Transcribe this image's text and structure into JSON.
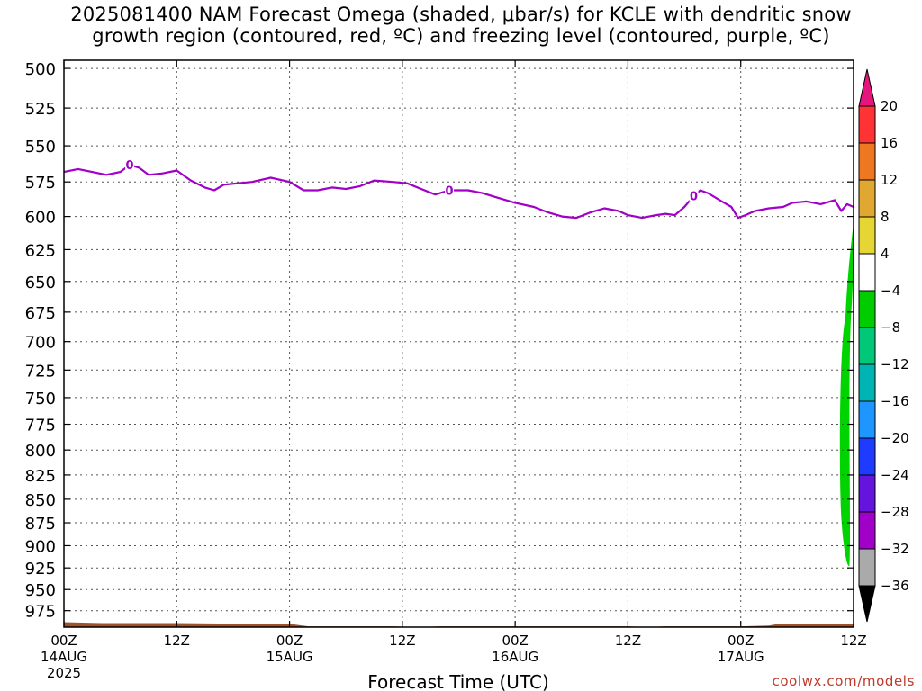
{
  "title": {
    "line1": "2025081400 NAM Forecast Omega (shaded, μbar/s) for KCLE with dendritic snow",
    "line2": "growth region (contoured, red, ºC) and freezing level (contoured, purple, ºC)"
  },
  "credit": "coolwx.com/models",
  "chart_data": {
    "type": "heatmap",
    "xlabel": "Forecast Time (UTC)",
    "ylabel": "",
    "x_range_hours": [
      0,
      84
    ],
    "x_ticks": [
      {
        "hour": 0,
        "label": "00Z",
        "date": "14AUG",
        "year": "2025"
      },
      {
        "hour": 12,
        "label": "12Z"
      },
      {
        "hour": 24,
        "label": "00Z",
        "date": "15AUG"
      },
      {
        "hour": 36,
        "label": "12Z"
      },
      {
        "hour": 48,
        "label": "00Z",
        "date": "16AUG"
      },
      {
        "hour": 60,
        "label": "12Z"
      },
      {
        "hour": 72,
        "label": "00Z",
        "date": "17AUG"
      },
      {
        "hour": 84,
        "label": "12Z"
      }
    ],
    "y_axis": {
      "label": "",
      "units": "mb",
      "log_scale": true,
      "range": [
        995,
        495
      ],
      "ticks": [
        500,
        525,
        550,
        575,
        600,
        625,
        650,
        675,
        700,
        725,
        750,
        775,
        800,
        825,
        850,
        875,
        900,
        925,
        950,
        975
      ]
    },
    "grid": true,
    "freezing_level": {
      "color": "#a000c8",
      "contour_value": "0",
      "label_hours": [
        7,
        41,
        67
      ],
      "points": [
        [
          0,
          568
        ],
        [
          1.5,
          566
        ],
        [
          3,
          568
        ],
        [
          4.5,
          570
        ],
        [
          6,
          568
        ],
        [
          7,
          563
        ],
        [
          8,
          565
        ],
        [
          9,
          570
        ],
        [
          10.5,
          569
        ],
        [
          12,
          567
        ],
        [
          13.5,
          574
        ],
        [
          15,
          579
        ],
        [
          16,
          581
        ],
        [
          17,
          577
        ],
        [
          18.5,
          576
        ],
        [
          20,
          575
        ],
        [
          22,
          572
        ],
        [
          24,
          575
        ],
        [
          25.5,
          581
        ],
        [
          27,
          581
        ],
        [
          28.5,
          579
        ],
        [
          30,
          580
        ],
        [
          31.5,
          578
        ],
        [
          33,
          574
        ],
        [
          35,
          575
        ],
        [
          36.5,
          576
        ],
        [
          38,
          580
        ],
        [
          39.5,
          584
        ],
        [
          41,
          581
        ],
        [
          43,
          581
        ],
        [
          44.5,
          583
        ],
        [
          46,
          586
        ],
        [
          48,
          590
        ],
        [
          50,
          593
        ],
        [
          51.5,
          597
        ],
        [
          53,
          600
        ],
        [
          54.5,
          601
        ],
        [
          56,
          597
        ],
        [
          57.5,
          594
        ],
        [
          59,
          596
        ],
        [
          60,
          599
        ],
        [
          61.5,
          601
        ],
        [
          63,
          599
        ],
        [
          64,
          598
        ],
        [
          65,
          599
        ],
        [
          66,
          593
        ],
        [
          67,
          585
        ],
        [
          67.7,
          581
        ],
        [
          68.5,
          583
        ],
        [
          70,
          589
        ],
        [
          71,
          593
        ],
        [
          71.7,
          601
        ],
        [
          72.5,
          599
        ],
        [
          73.5,
          596
        ],
        [
          75,
          594
        ],
        [
          76.5,
          593
        ],
        [
          77.5,
          590
        ],
        [
          79,
          589
        ],
        [
          80.5,
          591
        ],
        [
          81.5,
          589
        ],
        [
          82,
          588
        ],
        [
          82.7,
          596
        ],
        [
          83.3,
          591
        ],
        [
          84,
          593
        ]
      ]
    },
    "omega_field": {
      "color": "#00d400",
      "band_range_mb": [
        -8,
        -4
      ],
      "hours": [
        82.7,
        84
      ],
      "pressure_range_mb": [
        605,
        925
      ]
    },
    "terrain": {
      "color": "#a0522d",
      "surface_pressure_mb": [
        [
          0,
          989
        ],
        [
          4,
          990
        ],
        [
          12,
          990
        ],
        [
          20,
          991
        ],
        [
          24,
          991
        ],
        [
          26,
          994
        ],
        [
          35,
          994
        ],
        [
          38,
          995
        ],
        [
          40,
          994
        ],
        [
          48,
          994
        ],
        [
          58,
          994
        ],
        [
          60,
          994
        ],
        [
          62,
          995
        ],
        [
          64,
          994
        ],
        [
          72,
          994
        ],
        [
          75,
          993
        ],
        [
          76,
          991
        ],
        [
          84,
          991
        ]
      ]
    },
    "colorbar": {
      "units": "μbar/s",
      "bands": [
        {
          "lo": "16",
          "hi": "20",
          "color": "#ff3333"
        },
        {
          "lo": "12",
          "hi": "16",
          "color": "#ee7722"
        },
        {
          "lo": "8",
          "hi": "12",
          "color": "#e0a830"
        },
        {
          "lo": "4",
          "hi": "8",
          "color": "#e6d633"
        },
        {
          "lo": "-4",
          "hi": "4",
          "color": "#ffffff"
        },
        {
          "lo": "-8",
          "hi": "-4",
          "color": "#00cc00"
        },
        {
          "lo": "-12",
          "hi": "-8",
          "color": "#00c878"
        },
        {
          "lo": "-16",
          "hi": "-12",
          "color": "#00b4b4"
        },
        {
          "lo": "-20",
          "hi": "-16",
          "color": "#1e96ff"
        },
        {
          "lo": "-24",
          "hi": "-20",
          "color": "#1e3cff"
        },
        {
          "lo": "-28",
          "hi": "-24",
          "color": "#6414dc"
        },
        {
          "lo": "-32",
          "hi": "-28",
          "color": "#a000c8"
        },
        {
          "lo": "-36",
          "hi": "-32",
          "color": "#aaaaaa"
        }
      ],
      "top_arrow_color": "#e6147d",
      "bottom_arrow_color": "#000000",
      "tick_labels": [
        "20",
        "16",
        "12",
        "8",
        "4",
        "−4",
        "−8",
        "−12",
        "−16",
        "−20",
        "−24",
        "−28",
        "−32",
        "−36"
      ]
    }
  }
}
